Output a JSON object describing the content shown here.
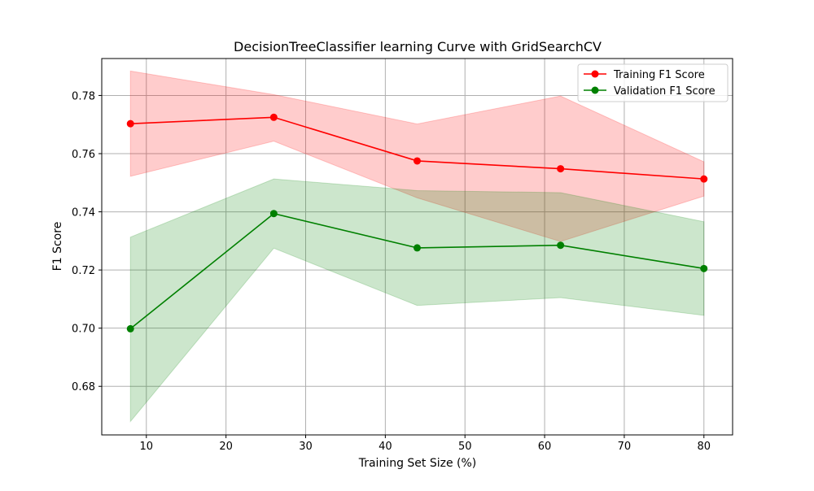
{
  "chart_data": {
    "type": "line",
    "title": "DecisionTreeClassifier learning Curve with GridSearchCV",
    "xlabel": "Training Set Size (%)",
    "ylabel": "F1 Score",
    "xlim": [
      4.4,
      83.6
    ],
    "ylim": [
      0.6633,
      0.7927
    ],
    "x_ticks": [
      10,
      20,
      30,
      40,
      50,
      60,
      70,
      80
    ],
    "x_tick_labels": [
      "10",
      "20",
      "30",
      "40",
      "50",
      "60",
      "70",
      "80"
    ],
    "y_ticks": [
      0.68,
      0.7,
      0.72,
      0.74,
      0.76,
      0.78
    ],
    "y_tick_labels": [
      "0.68",
      "0.70",
      "0.72",
      "0.74",
      "0.76",
      "0.78"
    ],
    "grid": true,
    "legend_position": "upper-right",
    "x": [
      8,
      26,
      44,
      62,
      80
    ],
    "series": [
      {
        "name": "Training F1 Score",
        "color": "#ff0000",
        "band_color": "#ff0000",
        "values": [
          0.7703,
          0.7725,
          0.7575,
          0.7548,
          0.7513
        ],
        "upper": [
          0.7884,
          0.7803,
          0.7702,
          0.7798,
          0.7572
        ],
        "lower": [
          0.7522,
          0.7643,
          0.7448,
          0.7298,
          0.7454
        ]
      },
      {
        "name": "Validation F1 Score",
        "color": "#008000",
        "band_color": "#008000",
        "values": [
          0.6998,
          0.7394,
          0.7276,
          0.7285,
          0.7205
        ],
        "upper": [
          0.7313,
          0.7513,
          0.7473,
          0.7466,
          0.7366
        ],
        "lower": [
          0.6679,
          0.7275,
          0.7078,
          0.7105,
          0.7044
        ]
      }
    ]
  }
}
